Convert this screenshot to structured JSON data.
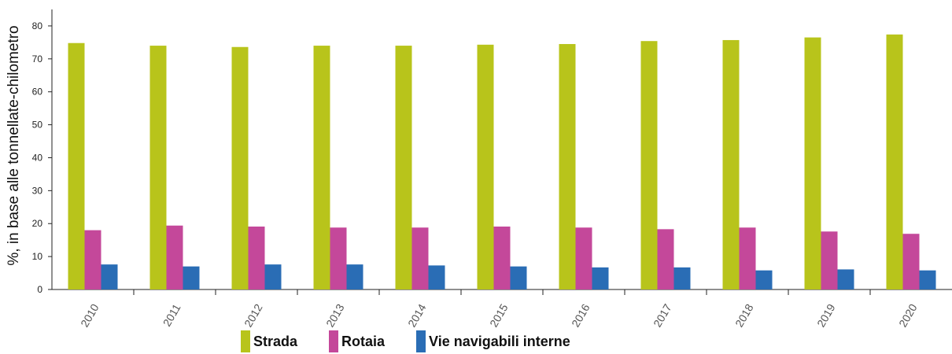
{
  "chart_data": {
    "type": "bar",
    "title": "",
    "xlabel": "",
    "ylabel": "%, in base alle tonnellate-chilometro",
    "ylim": [
      0,
      85
    ],
    "yticks": [
      0,
      10,
      20,
      30,
      40,
      50,
      60,
      70,
      80
    ],
    "categories": [
      "2010",
      "2011",
      "2012",
      "2013",
      "2014",
      "2015",
      "2016",
      "2017",
      "2018",
      "2019",
      "2020"
    ],
    "series": [
      {
        "name": "Strada",
        "color": "#b8c41b",
        "values": [
          74.8,
          74.0,
          73.6,
          74.0,
          74.0,
          74.3,
          74.5,
          75.4,
          75.7,
          76.5,
          77.4
        ]
      },
      {
        "name": "Rotaia",
        "color": "#c4489a",
        "values": [
          18.0,
          19.4,
          19.1,
          18.8,
          18.8,
          19.1,
          18.8,
          18.3,
          18.8,
          17.6,
          16.9
        ]
      },
      {
        "name": "Vie navigabili interne",
        "color": "#2a6db5",
        "values": [
          7.6,
          7.0,
          7.6,
          7.6,
          7.3,
          7.0,
          6.7,
          6.7,
          5.8,
          6.1,
          5.8
        ]
      }
    ],
    "grid": false,
    "legend_position": "bottom"
  }
}
